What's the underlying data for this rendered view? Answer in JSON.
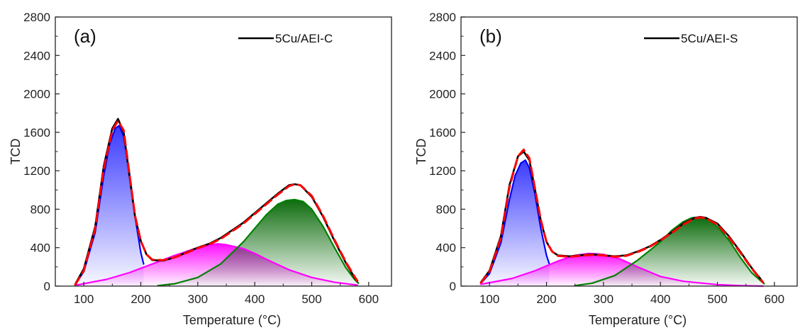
{
  "chart_data": [
    {
      "type": "line",
      "panel_label": "(a)",
      "xlabel": "Temperature (°C)",
      "ylabel": "TCD",
      "xlim": [
        50,
        640
      ],
      "ylim": [
        0,
        2800
      ],
      "xticks": [
        100,
        200,
        300,
        400,
        500,
        600
      ],
      "yticks": [
        0,
        400,
        800,
        1200,
        1600,
        2000,
        2400,
        2800
      ],
      "legend": {
        "position": "top-right",
        "entries": [
          "5Cu/AEI-C"
        ]
      },
      "grid": false,
      "series": [
        {
          "name": "5Cu/AEI-C",
          "color": "#000000",
          "x": [
            85,
            100,
            120,
            135,
            150,
            160,
            170,
            180,
            190,
            200,
            210,
            220,
            240,
            260,
            280,
            300,
            320,
            340,
            360,
            380,
            400,
            420,
            440,
            460,
            470,
            480,
            500,
            520,
            540,
            560,
            575,
            580
          ],
          "y": [
            20,
            180,
            620,
            1250,
            1640,
            1740,
            1600,
            1150,
            720,
            470,
            330,
            270,
            265,
            300,
            350,
            400,
            440,
            500,
            580,
            660,
            760,
            860,
            960,
            1050,
            1060,
            1050,
            930,
            720,
            470,
            240,
            90,
            50
          ]
        },
        {
          "color": "#ff0000",
          "dashed": true,
          "x": [
            85,
            100,
            120,
            135,
            150,
            160,
            170,
            180,
            190,
            200,
            210,
            220,
            240,
            260,
            280,
            300,
            320,
            340,
            360,
            380,
            400,
            420,
            440,
            460,
            470,
            480,
            500,
            520,
            540,
            560,
            575,
            580
          ],
          "y": [
            15,
            160,
            600,
            1220,
            1620,
            1720,
            1620,
            1170,
            730,
            470,
            330,
            275,
            270,
            300,
            345,
            395,
            435,
            490,
            570,
            650,
            750,
            850,
            950,
            1040,
            1060,
            1050,
            940,
            730,
            480,
            250,
            100,
            55
          ]
        },
        {
          "color": "#0000ff",
          "fill": "#3030ff",
          "x": [
            85,
            100,
            120,
            135,
            145,
            155,
            162,
            170,
            180,
            190,
            200,
            205
          ],
          "y": [
            20,
            150,
            560,
            1150,
            1470,
            1640,
            1670,
            1560,
            1180,
            720,
            350,
            230
          ]
        },
        {
          "color": "#ff00ff",
          "fill": "#ff00ff",
          "x": [
            85,
            100,
            140,
            180,
            220,
            260,
            300,
            320,
            335,
            350,
            380,
            400,
            420,
            460,
            500,
            540,
            580
          ],
          "y": [
            8,
            25,
            70,
            140,
            230,
            320,
            400,
            430,
            440,
            430,
            390,
            340,
            280,
            170,
            90,
            40,
            10
          ]
        },
        {
          "color": "#008000",
          "fill": "#006400",
          "x": [
            230,
            260,
            300,
            340,
            380,
            400,
            420,
            440,
            455,
            470,
            485,
            500,
            520,
            540,
            560,
            575,
            582
          ],
          "y": [
            5,
            25,
            90,
            230,
            460,
            600,
            740,
            850,
            890,
            900,
            880,
            800,
            620,
            400,
            190,
            70,
            30
          ]
        }
      ]
    },
    {
      "type": "line",
      "panel_label": "(b)",
      "xlabel": "Temperature (°C)",
      "ylabel": "TCD",
      "xlim": [
        50,
        640
      ],
      "ylim": [
        0,
        2800
      ],
      "xticks": [
        100,
        200,
        300,
        400,
        500,
        600
      ],
      "yticks": [
        0,
        400,
        800,
        1200,
        1600,
        2000,
        2400,
        2800
      ],
      "legend": {
        "position": "top-right",
        "entries": [
          "5Cu/AEI-S"
        ]
      },
      "grid": false,
      "series": [
        {
          "name": "5Cu/AEI-S",
          "color": "#000000",
          "x": [
            85,
            100,
            120,
            135,
            150,
            160,
            170,
            180,
            190,
            200,
            210,
            220,
            240,
            260,
            280,
            300,
            320,
            340,
            360,
            380,
            400,
            420,
            440,
            460,
            470,
            480,
            500,
            520,
            540,
            560,
            575,
            580
          ],
          "y": [
            40,
            160,
            520,
            1050,
            1350,
            1400,
            1310,
            1000,
            680,
            460,
            360,
            320,
            310,
            320,
            330,
            320,
            310,
            320,
            360,
            410,
            480,
            560,
            650,
            710,
            720,
            710,
            650,
            520,
            360,
            190,
            80,
            40
          ]
        },
        {
          "color": "#ff0000",
          "dashed": true,
          "x": [
            85,
            100,
            120,
            135,
            150,
            160,
            170,
            180,
            190,
            200,
            210,
            220,
            240,
            260,
            280,
            300,
            320,
            340,
            360,
            380,
            400,
            420,
            440,
            460,
            470,
            480,
            500,
            520,
            540,
            560,
            575,
            580
          ],
          "y": [
            35,
            150,
            500,
            1030,
            1350,
            1420,
            1330,
            1010,
            690,
            460,
            360,
            315,
            305,
            315,
            325,
            320,
            305,
            315,
            355,
            405,
            475,
            555,
            640,
            705,
            715,
            705,
            640,
            510,
            350,
            185,
            75,
            40
          ]
        },
        {
          "color": "#0000ff",
          "fill": "#3030ff",
          "x": [
            85,
            100,
            120,
            135,
            145,
            155,
            163,
            170,
            180,
            190,
            200,
            205
          ],
          "y": [
            30,
            130,
            450,
            900,
            1150,
            1280,
            1310,
            1230,
            950,
            600,
            320,
            230
          ]
        },
        {
          "color": "#ff00ff",
          "fill": "#ff00ff",
          "x": [
            85,
            100,
            140,
            180,
            220,
            250,
            275,
            300,
            330,
            360,
            380,
            400,
            440,
            500,
            540,
            580
          ],
          "y": [
            20,
            35,
            80,
            160,
            260,
            320,
            340,
            330,
            280,
            200,
            150,
            100,
            50,
            15,
            5,
            0
          ]
        },
        {
          "color": "#008000",
          "fill": "#006400",
          "x": [
            250,
            280,
            320,
            360,
            400,
            420,
            440,
            455,
            465,
            480,
            500,
            520,
            540,
            560,
            575,
            582
          ],
          "y": [
            5,
            30,
            110,
            270,
            460,
            580,
            670,
            710,
            715,
            700,
            620,
            480,
            300,
            140,
            60,
            25
          ]
        }
      ]
    }
  ]
}
